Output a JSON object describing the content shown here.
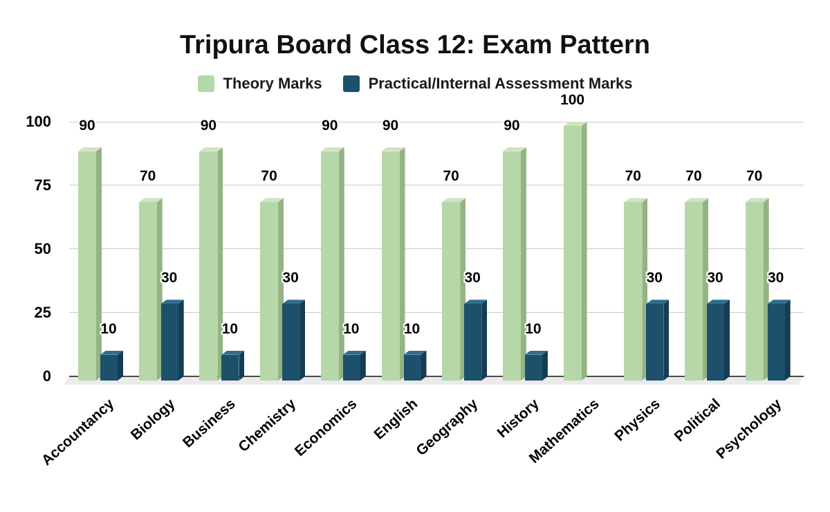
{
  "title": "Tripura Board Class 12: Exam Pattern",
  "chart_data": {
    "type": "bar",
    "title": "Tripura Board Class 12: Exam Pattern",
    "categories": [
      "Accountancy",
      "Biology",
      "Business",
      "Chemistry",
      "Economics",
      "English",
      "Geography",
      "History",
      "Mathematics",
      "Physics",
      "Political",
      "Psychology"
    ],
    "series": [
      {
        "name": "Theory Marks",
        "values": [
          90,
          70,
          90,
          70,
          90,
          90,
          70,
          90,
          100,
          70,
          70,
          70
        ],
        "color": {
          "front": "#b6d7a8",
          "top": "#cfe4c2",
          "side": "#94b483"
        }
      },
      {
        "name": "Practical/Internal Assessment Marks",
        "values": [
          10,
          30,
          10,
          30,
          10,
          10,
          30,
          10,
          0,
          30,
          30,
          30
        ],
        "color": {
          "front": "#1d506b",
          "top": "#2f6e90",
          "side": "#143c53"
        }
      }
    ],
    "xlabel": "",
    "ylabel": "",
    "ylim": [
      0,
      100
    ],
    "yticks": [
      0,
      25,
      50,
      75,
      100
    ],
    "grid": "horizontal",
    "legend_position": "top",
    "value_labels_shown": true,
    "bar_style": "3d",
    "colors": {
      "background": "#ffffff",
      "gridline": "#c9c9c9",
      "baseline": "#4a4a4a",
      "floor": "#ebebeb",
      "label_text": "#000000",
      "title_text": "#111111"
    }
  }
}
